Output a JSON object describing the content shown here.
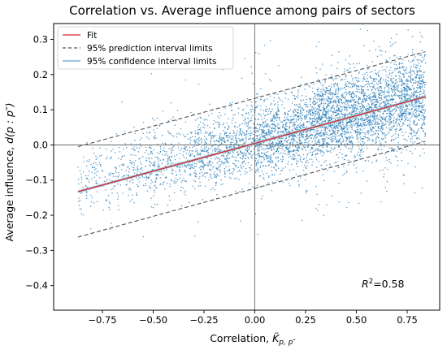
{
  "chart_data": {
    "type": "scatter",
    "title": "Correlation vs. Average influence among pairs of sectors",
    "xlabel_main": "Correlation, ",
    "xlabel_symbol": "K̃",
    "xlabel_sub": "p, p″",
    "ylabel_main": "Average influence, ",
    "ylabel_math": "d(p : p″)",
    "xlim": [
      -0.99,
      0.91
    ],
    "ylim": [
      -0.47,
      0.345
    ],
    "xticks": [
      -0.75,
      -0.5,
      -0.25,
      0.0,
      0.25,
      0.5,
      0.75
    ],
    "xtick_labels": [
      "−0.75",
      "−0.50",
      "−0.25",
      "0.00",
      "0.25",
      "0.50",
      "0.75"
    ],
    "yticks": [
      -0.4,
      -0.3,
      -0.2,
      -0.1,
      0.0,
      0.1,
      0.2,
      0.3
    ],
    "ytick_labels": [
      "−0.4",
      "−0.3",
      "−0.2",
      "−0.1",
      "0.0",
      "0.1",
      "0.2",
      "0.3"
    ],
    "fit": {
      "x": [
        -0.87,
        0.84
      ],
      "y": [
        -0.133,
        0.137
      ]
    },
    "prediction_upper": {
      "x": [
        -0.87,
        0.84
      ],
      "y": [
        -0.005,
        0.265
      ]
    },
    "prediction_lower": {
      "x": [
        -0.87,
        0.84
      ],
      "y": [
        -0.262,
        0.01
      ]
    },
    "reference_lines": {
      "x": 0.0,
      "y": 0.0
    },
    "scatter_density": [
      {
        "x_range": [
          -0.87,
          -0.6
        ],
        "y_center_at_start": -0.11,
        "spread": 0.05,
        "weight": 0.04
      },
      {
        "x_range": [
          -0.6,
          -0.3
        ],
        "y_center_at_start": -0.07,
        "spread": 0.05,
        "weight": 0.08
      },
      {
        "x_range": [
          -0.3,
          0.0
        ],
        "y_center_at_start": -0.03,
        "spread": 0.05,
        "weight": 0.14
      },
      {
        "x_range": [
          0.0,
          0.3
        ],
        "y_center_at_start": 0.01,
        "spread": 0.055,
        "weight": 0.22
      },
      {
        "x_range": [
          0.3,
          0.6
        ],
        "y_center_at_start": 0.06,
        "spread": 0.06,
        "weight": 0.3
      },
      {
        "x_range": [
          0.6,
          0.84
        ],
        "y_center_at_start": 0.1,
        "spread": 0.065,
        "weight": 0.22
      }
    ],
    "legend": {
      "position": "upper-left",
      "entries": [
        {
          "label": "Fit",
          "color": "#d62728",
          "style": "solid"
        },
        {
          "label": "95% prediction interval limits",
          "color": "#555555",
          "style": "dashed"
        },
        {
          "label": "95% confidence interval limits",
          "color": "#9ecae1",
          "style": "solid"
        }
      ]
    },
    "annotation": {
      "r2_prefix": "R",
      "r2_exp": "2",
      "r2_value": "=0.58"
    },
    "colors": {
      "points": "#1f77b4",
      "fit": "#d62728",
      "prediction": "#555555",
      "confidence": "#9ecae1"
    }
  }
}
